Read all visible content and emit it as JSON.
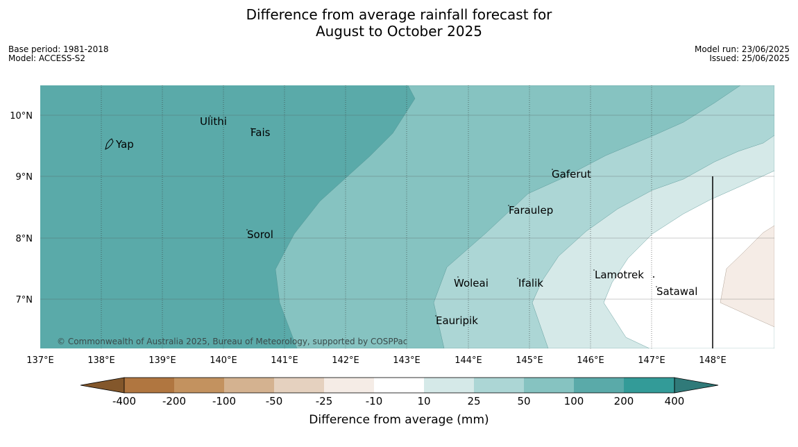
{
  "title_line1": "Difference from average rainfall forecast for",
  "title_line2": "August to October 2025",
  "base_period": "Base period: 1981-2018",
  "model": "Model: ACCESS-S2",
  "model_run": "Model run: 23/06/2025",
  "issued": "Issued: 25/06/2025",
  "credit": "© Commonwealth of Australia 2025, Bureau of Meteorology, supported by COSPPac",
  "lon_ticks": [
    "137°E",
    "138°E",
    "139°E",
    "140°E",
    "141°E",
    "142°E",
    "143°E",
    "144°E",
    "145°E",
    "146°E",
    "147°E",
    "148°E"
  ],
  "lat_ticks": [
    "10°N",
    "9°N",
    "8°N",
    "7°N"
  ],
  "places": [
    {
      "name": "Yap",
      "lon": 138.2,
      "lat": 9.5
    },
    {
      "name": "Ulithi",
      "lon": 139.75,
      "lat": 9.9
    },
    {
      "name": "Fais",
      "lon": 140.5,
      "lat": 9.75
    },
    {
      "name": "Sorol",
      "lon": 140.4,
      "lat": 8.1
    },
    {
      "name": "Gaferut",
      "lon": 145.4,
      "lat": 9.25
    },
    {
      "name": "Faraulep",
      "lon": 144.6,
      "lat": 8.6
    },
    {
      "name": "Woleai",
      "lon": 143.9,
      "lat": 7.35
    },
    {
      "name": "Ifalik",
      "lon": 144.45,
      "lat": 7.25
    },
    {
      "name": "Eauripik",
      "lon": 143.1,
      "lat": 6.7
    },
    {
      "name": "Lamotrek",
      "lon": 146.3,
      "lat": 7.45
    },
    {
      "name": "Satawal",
      "lon": 147.05,
      "lat": 7.35
    }
  ],
  "colorbar": {
    "title": "Difference from average (mm)",
    "labels": [
      "-400",
      "-200",
      "-100",
      "-50",
      "-25",
      "-10",
      "10",
      "25",
      "50",
      "100",
      "200",
      "400"
    ],
    "colors": [
      "#83572b",
      "#b07640",
      "#c3925f",
      "#d4b290",
      "#e5d1bf",
      "#f5ece6",
      "#ffffff",
      "#d5e9e8",
      "#acd6d5",
      "#86c3c1",
      "#5aaaa9",
      "#339b98",
      "#307a79"
    ]
  },
  "legend_category_colors": {
    "c_25_50": "#acd6d5",
    "c_50_100": "#86c3c1",
    "c_100_200": "#5aaaa9",
    "c_10_25": "#d5e9e8",
    "c_neg25_neg10": "#f5ece6",
    "c_neg10_10": "#ffffff"
  }
}
